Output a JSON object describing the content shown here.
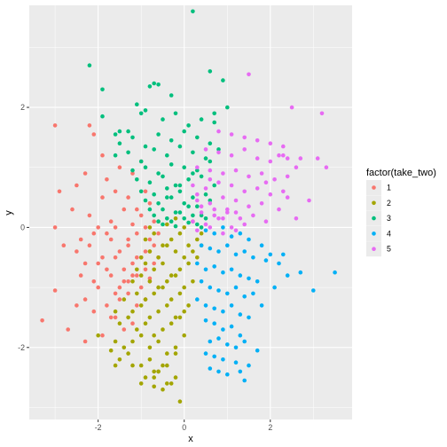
{
  "chart_data": {
    "type": "scatter",
    "xlabel": "x",
    "ylabel": "y",
    "xlim": [
      -3.6,
      3.9
    ],
    "ylim": [
      -3.2,
      3.7
    ],
    "x_ticks": [
      -2,
      0,
      2
    ],
    "y_ticks": [
      -2,
      0,
      2
    ],
    "grid": true,
    "background": "#ebebeb",
    "legend": {
      "title": "factor(take_two)",
      "position": "right",
      "entries": [
        "1",
        "2",
        "3",
        "4",
        "5"
      ]
    },
    "series": [
      {
        "name": "1",
        "color": "#F8766D",
        "x": [
          -3.0,
          -2.9,
          -2.2,
          -2.1,
          -1.9,
          -2.5,
          -2.3,
          -1.8,
          -1.5,
          -1.2,
          -1.0,
          -2.6,
          -2.2,
          -1.9,
          -1.6,
          -1.3,
          -1.1,
          -0.9,
          -0.8,
          -2.0,
          -1.7,
          -1.4,
          -1.2,
          -1.0,
          -0.7,
          -3.0,
          -2.4,
          -2.1,
          -1.8,
          -1.6,
          -1.3,
          -1.1,
          -0.9,
          -0.8,
          -0.6,
          -2.8,
          -2.5,
          -2.2,
          -1.9,
          -1.7,
          -1.5,
          -1.3,
          -1.1,
          -0.9,
          -0.7,
          -2.3,
          -2.0,
          -1.8,
          -1.6,
          -1.4,
          -1.2,
          -1.0,
          -0.8,
          -0.6,
          -2.4,
          -2.1,
          -1.7,
          -1.5,
          -1.3,
          -1.1,
          -0.9,
          -0.8,
          -0.7,
          -2.0,
          -1.6,
          -1.4,
          -1.2,
          -1.0,
          -0.8,
          -2.3,
          -1.8,
          -1.5,
          -1.3,
          -1.1,
          -0.9,
          -3.3,
          -2.7,
          -2.3,
          -1.9,
          -1.6,
          -1.4,
          -1.2,
          -3.0,
          -2.5,
          -2.1,
          -1.7
        ],
        "y": [
          1.7,
          0.6,
          1.7,
          1.55,
          1.2,
          0.7,
          0.9,
          0.8,
          1.0,
          0.9,
          1.1,
          0.3,
          0.2,
          0.5,
          0.6,
          0.5,
          0.3,
          0.6,
          0.4,
          0.0,
          0.1,
          0.3,
          0.05,
          0.2,
          0.1,
          0.0,
          -0.2,
          -0.1,
          -0.1,
          0.0,
          -0.2,
          -0.1,
          0.0,
          -0.2,
          -0.1,
          -0.3,
          -0.4,
          -0.3,
          -0.5,
          -0.2,
          -0.4,
          -0.3,
          -0.5,
          -0.4,
          -0.3,
          -0.6,
          -0.6,
          -0.7,
          -0.5,
          -0.7,
          -0.6,
          -0.5,
          -0.4,
          -0.5,
          -0.8,
          -0.9,
          -0.8,
          -1.0,
          -0.9,
          -0.8,
          -0.7,
          -0.85,
          -0.6,
          -1.0,
          -1.1,
          -0.9,
          -0.8,
          -1.0,
          -0.9,
          -1.2,
          -1.3,
          -1.2,
          -1.1,
          -1.3,
          -1.2,
          -1.55,
          -1.7,
          -1.9,
          -1.8,
          -1.5,
          -1.7,
          -1.6,
          -1.05,
          -1.3,
          -1.4,
          -1.5
        ]
      },
      {
        "name": "2",
        "color": "#A3A500",
        "x": [
          -0.8,
          -0.6,
          -0.4,
          -0.2,
          0.0,
          0.2,
          0.4,
          -0.9,
          -0.7,
          -0.5,
          -0.3,
          -0.1,
          0.1,
          0.3,
          -1.0,
          -0.8,
          -0.6,
          -0.4,
          -0.2,
          0.0,
          0.2,
          0.4,
          -1.1,
          -0.9,
          -0.7,
          -0.5,
          -0.3,
          -0.1,
          0.1,
          0.3,
          -1.2,
          -1.0,
          -0.8,
          -0.6,
          -0.4,
          -0.2,
          0.0,
          0.2,
          -1.1,
          -0.9,
          -0.7,
          -0.5,
          -0.3,
          -0.1,
          0.1,
          -1.2,
          -1.0,
          -0.8,
          -0.6,
          -0.4,
          -0.2,
          0.0,
          -1.5,
          -1.3,
          -1.1,
          -0.9,
          -0.7,
          -0.5,
          -0.3,
          -0.1,
          0.0,
          -1.6,
          -1.4,
          -1.2,
          -1.0,
          -0.8,
          -0.6,
          -0.4,
          -0.2,
          -1.7,
          -1.5,
          -1.3,
          -1.0,
          -0.8,
          -0.6,
          -0.4,
          -0.2,
          -2.0,
          -1.6,
          -1.2,
          -0.9,
          -0.7,
          -0.4,
          -0.2,
          -1.6,
          -1.4,
          -1.0,
          -0.7,
          -0.5,
          -0.3,
          -0.7,
          -0.6,
          -0.5,
          -0.1
        ],
        "y": [
          0.0,
          0.1,
          0.05,
          0.15,
          0.0,
          0.1,
          -0.1,
          -0.2,
          -0.1,
          -0.3,
          -0.2,
          -0.1,
          -0.3,
          -0.2,
          -0.5,
          -0.4,
          -0.5,
          -0.3,
          -0.4,
          -0.5,
          -0.4,
          -0.3,
          -0.7,
          -0.6,
          -0.7,
          -0.6,
          -0.8,
          -0.7,
          -0.6,
          -0.5,
          -0.9,
          -0.8,
          -0.9,
          -1.0,
          -0.9,
          -0.8,
          -1.0,
          -0.9,
          -1.1,
          -1.2,
          -1.1,
          -1.0,
          -1.2,
          -1.1,
          -1.3,
          -1.4,
          -1.3,
          -1.5,
          -1.4,
          -1.3,
          -1.5,
          -1.4,
          -1.6,
          -1.5,
          -1.7,
          -1.6,
          -1.8,
          -1.7,
          -1.6,
          -1.5,
          -1.8,
          -1.9,
          -2.0,
          -1.9,
          -1.8,
          -2.0,
          -1.9,
          -2.1,
          -2.0,
          -2.05,
          -2.2,
          -2.1,
          -2.3,
          -2.2,
          -2.4,
          -2.3,
          -2.1,
          -1.8,
          -2.3,
          -2.3,
          -2.5,
          -2.4,
          -2.6,
          -2.5,
          -1.4,
          -1.2,
          -2.6,
          -2.65,
          -2.7,
          -2.6,
          -2.5,
          -2.4,
          -2.3,
          -2.9
        ],
        "hide_points": true
      },
      {
        "name": "3",
        "color": "#00BF7D",
        "x": [
          0.2,
          -2.2,
          -1.9,
          -0.8,
          -0.7,
          -0.6,
          0.6,
          0.9,
          -1.6,
          -1.3,
          -1.0,
          -0.5,
          -0.2,
          0.1,
          0.4,
          0.7,
          -1.5,
          -1.2,
          -0.9,
          -0.6,
          -0.3,
          0.0,
          0.3,
          0.6,
          -1.6,
          -1.3,
          -1.0,
          -0.7,
          -0.4,
          -0.1,
          0.2,
          0.5,
          0.8,
          -1.2,
          -0.9,
          -0.6,
          -0.3,
          0.0,
          0.3,
          0.6,
          -1.1,
          -0.8,
          -0.5,
          -0.2,
          0.1,
          0.4,
          0.7,
          -1.0,
          -0.7,
          -0.4,
          -0.1,
          0.2,
          0.5,
          -0.9,
          -0.6,
          -0.3,
          0.0,
          0.3,
          0.6,
          -0.8,
          -0.5,
          -0.2,
          0.1,
          0.4,
          -0.7,
          -0.4,
          -0.1,
          0.2,
          0.5,
          -0.6,
          -0.3,
          0.0,
          0.3,
          -0.5,
          -0.2,
          0.1,
          0.4,
          -0.4,
          -0.1,
          0.2,
          -1.9,
          -1.5,
          -1.1,
          -0.9,
          -0.3,
          0.7,
          1.0
        ],
        "y": [
          3.6,
          2.7,
          2.3,
          2.35,
          2.4,
          2.38,
          2.6,
          2.45,
          1.55,
          1.6,
          1.9,
          1.8,
          1.9,
          1.7,
          1.8,
          1.9,
          1.4,
          1.5,
          1.35,
          1.55,
          1.45,
          1.6,
          1.5,
          1.4,
          1.2,
          1.25,
          1.1,
          1.3,
          1.2,
          1.35,
          1.25,
          1.15,
          1.3,
          0.95,
          1.0,
          0.9,
          1.05,
          1.0,
          0.95,
          1.1,
          0.8,
          0.75,
          0.85,
          0.7,
          0.8,
          0.85,
          0.7,
          0.6,
          0.55,
          0.65,
          0.6,
          0.5,
          0.55,
          0.45,
          0.4,
          0.5,
          0.4,
          0.35,
          0.45,
          0.3,
          0.3,
          0.25,
          0.35,
          0.2,
          0.2,
          0.15,
          0.25,
          0.2,
          0.15,
          0.1,
          0.1,
          0.15,
          0.05,
          0.05,
          0.02,
          0.08,
          0.0,
          0.5,
          0.7,
          0.9,
          1.85,
          1.6,
          2.05,
          1.95,
          2.2,
          1.75,
          2.0
        ]
      },
      {
        "name": "4",
        "color": "#00B0F6",
        "x": [
          0.5,
          0.7,
          0.9,
          1.1,
          1.3,
          1.5,
          1.8,
          2.0,
          0.4,
          0.6,
          0.8,
          1.0,
          1.2,
          1.4,
          1.6,
          1.9,
          2.2,
          0.3,
          0.5,
          0.7,
          0.9,
          1.1,
          1.3,
          1.5,
          1.7,
          2.1,
          0.4,
          0.6,
          0.8,
          1.0,
          1.2,
          1.4,
          1.6,
          1.8,
          0.3,
          0.5,
          0.7,
          0.9,
          1.1,
          1.3,
          1.5,
          0.5,
          0.7,
          0.9,
          1.1,
          1.3,
          0.6,
          0.8,
          1.0,
          1.2,
          1.4,
          1.7,
          0.5,
          0.7,
          0.9,
          1.2,
          1.5,
          0.6,
          0.8,
          1.0,
          1.4,
          3.0,
          2.4,
          2.7,
          3.5,
          2.3,
          1.3
        ],
        "y": [
          -0.05,
          -0.1,
          0.0,
          -0.15,
          -0.1,
          -0.2,
          -0.3,
          -0.45,
          -0.3,
          -0.35,
          -0.4,
          -0.3,
          -0.45,
          -0.4,
          -0.5,
          -0.55,
          -0.6,
          -0.6,
          -0.7,
          -0.65,
          -0.75,
          -0.7,
          -0.8,
          -0.85,
          -0.9,
          -1.0,
          -0.9,
          -1.0,
          -1.05,
          -1.1,
          -1.0,
          -1.15,
          -1.1,
          -1.3,
          -1.2,
          -1.3,
          -1.35,
          -1.4,
          -1.3,
          -1.45,
          -1.5,
          -1.55,
          -1.6,
          -1.7,
          -1.65,
          -1.8,
          -1.9,
          -1.85,
          -1.95,
          -2.0,
          -1.9,
          -2.05,
          -2.1,
          -2.15,
          -2.2,
          -2.25,
          -2.3,
          -2.35,
          -2.4,
          -2.45,
          -2.55,
          -1.05,
          -0.8,
          -0.75,
          -0.75,
          -0.45,
          -2.4
        ]
      },
      {
        "name": "5",
        "color": "#E76BF3",
        "x": [
          1.5,
          2.5,
          3.2,
          2.2,
          2.4,
          2.7,
          3.1,
          3.3,
          0.8,
          1.1,
          1.4,
          1.7,
          2.0,
          2.3,
          0.5,
          0.8,
          1.1,
          1.4,
          1.7,
          2.0,
          2.3,
          2.6,
          0.3,
          0.6,
          0.9,
          1.2,
          1.5,
          1.8,
          2.1,
          2.4,
          0.2,
          0.5,
          0.8,
          1.1,
          1.4,
          1.7,
          2.0,
          2.3,
          0.3,
          0.6,
          0.9,
          1.2,
          1.5,
          1.8,
          2.2,
          0.4,
          0.7,
          1.0,
          1.3,
          1.6,
          1.9,
          0.2,
          0.5,
          0.8,
          1.1,
          1.4,
          0.3,
          0.6,
          0.9,
          1.2,
          0.4,
          0.7,
          1.0,
          2.4,
          2.9,
          1.9,
          2.6,
          0.3,
          0.6,
          0.9,
          1.2
        ],
        "y": [
          2.55,
          2.0,
          1.9,
          1.2,
          1.15,
          1.15,
          1.15,
          1.0,
          1.6,
          1.55,
          1.5,
          1.45,
          1.4,
          1.35,
          1.3,
          1.25,
          1.2,
          1.3,
          1.15,
          1.1,
          1.2,
          1.0,
          1.0,
          0.95,
          0.9,
          0.95,
          0.85,
          0.9,
          0.8,
          0.85,
          0.7,
          0.65,
          0.75,
          0.7,
          0.6,
          0.65,
          0.55,
          0.6,
          0.45,
          0.4,
          0.5,
          0.45,
          0.35,
          0.4,
          0.3,
          0.25,
          0.2,
          0.3,
          0.15,
          0.2,
          0.1,
          0.1,
          0.05,
          0.15,
          0.0,
          0.05,
          -0.05,
          0.0,
          -0.1,
          -0.05,
          0.35,
          0.3,
          0.25,
          0.5,
          0.45,
          0.75,
          0.15,
          0.55,
          0.8,
          0.15,
          0.25
        ]
      }
    ]
  }
}
